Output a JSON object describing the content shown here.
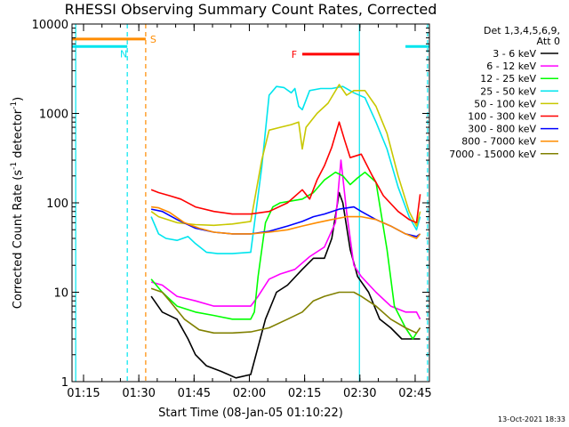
{
  "chart_data": {
    "type": "line",
    "title": "RHESSI Observing Summary Count Rates, Corrected",
    "xlabel": "Start Time (08-Jan-05 01:10:22)",
    "ylabel_main": "Corrected Count Rate (s",
    "ylabel_sup1": "-1",
    "ylabel_mid": " detector",
    "ylabel_sup2": "-1",
    "ylabel_end": ")",
    "yscale": "log",
    "ylim": [
      1,
      10000
    ],
    "xlim_minutes": [
      1.5,
      98.5
    ],
    "yticks": [
      {
        "value": 1,
        "label": "1"
      },
      {
        "value": 10,
        "label": "10"
      },
      {
        "value": 100,
        "label": "100"
      },
      {
        "value": 1000,
        "label": "1000"
      },
      {
        "value": 10000,
        "label": "10000"
      }
    ],
    "xticks": [
      {
        "t": 4.63,
        "label": "01:15"
      },
      {
        "t": 19.63,
        "label": "01:30"
      },
      {
        "t": 34.63,
        "label": "01:45"
      },
      {
        "t": 49.63,
        "label": "02:00"
      },
      {
        "t": 64.63,
        "label": "02:15"
      },
      {
        "t": 79.63,
        "label": "02:30"
      },
      {
        "t": 94.63,
        "label": "02:45"
      }
    ],
    "legend_title_1": "Det 1,3,4,5,6,9,",
    "legend_title_2": "Att 0",
    "legend_position": "right",
    "timestamp": "13-Oct-2021 18:33",
    "flags": [
      {
        "label": "S",
        "color": "#ff8c00",
        "t_start": 1.5,
        "t_end": 21.5,
        "y": 6800
      },
      {
        "label": "N",
        "color": "#00e5ee",
        "t_start": 1.5,
        "t_end": 16.5,
        "y": 5600
      },
      {
        "label": "",
        "color": "#00e5ee",
        "t_start": 92,
        "t_end": 98.5,
        "y": 5600
      },
      {
        "label": "F",
        "color": "#ff0000",
        "t_start": 64,
        "t_end": 79.5,
        "y": 4600
      }
    ],
    "vlines": [
      {
        "t": 2.5,
        "color": "#00e5ee",
        "style": "solid"
      },
      {
        "t": 16.5,
        "color": "#00e5ee",
        "style": "dashed"
      },
      {
        "t": 21.5,
        "color": "#ff8c00",
        "style": "dashed"
      },
      {
        "t": 79.5,
        "color": "#00e5ee",
        "style": "solid"
      },
      {
        "t": 98,
        "color": "#00e5ee",
        "style": "dashed"
      }
    ],
    "series": [
      {
        "name": "3 - 6 keV",
        "color": "#000000",
        "points": [
          [
            23,
            9
          ],
          [
            26,
            6
          ],
          [
            30,
            5
          ],
          [
            33,
            3
          ],
          [
            35,
            2
          ],
          [
            38,
            1.5
          ],
          [
            42,
            1.3
          ],
          [
            46,
            1.1
          ],
          [
            50,
            1.2
          ],
          [
            54,
            5
          ],
          [
            57,
            10
          ],
          [
            60,
            12
          ],
          [
            64,
            18
          ],
          [
            67,
            24
          ],
          [
            70,
            24
          ],
          [
            72,
            40
          ],
          [
            74,
            130
          ],
          [
            75,
            100
          ],
          [
            77,
            30
          ],
          [
            79,
            15
          ],
          [
            82,
            10
          ],
          [
            85,
            5
          ],
          [
            88,
            4
          ],
          [
            91,
            3
          ],
          [
            94,
            3
          ],
          [
            96,
            3
          ]
        ]
      },
      {
        "name": "6 - 12 keV",
        "color": "#ff00ff",
        "points": [
          [
            23,
            13
          ],
          [
            26,
            12
          ],
          [
            30,
            9
          ],
          [
            35,
            8
          ],
          [
            40,
            7
          ],
          [
            45,
            7
          ],
          [
            50,
            7
          ],
          [
            52,
            9
          ],
          [
            55,
            14
          ],
          [
            58,
            16
          ],
          [
            62,
            18
          ],
          [
            66,
            25
          ],
          [
            70,
            32
          ],
          [
            73,
            60
          ],
          [
            74.5,
            300
          ],
          [
            76,
            80
          ],
          [
            78,
            20
          ],
          [
            80,
            15
          ],
          [
            84,
            10
          ],
          [
            88,
            7
          ],
          [
            92,
            6
          ],
          [
            95,
            6
          ],
          [
            96,
            5
          ]
        ]
      },
      {
        "name": "12 - 25 keV",
        "color": "#00ff00",
        "points": [
          [
            23,
            14
          ],
          [
            26,
            10
          ],
          [
            30,
            7
          ],
          [
            35,
            6
          ],
          [
            40,
            5.5
          ],
          [
            45,
            5
          ],
          [
            50,
            5
          ],
          [
            51,
            6
          ],
          [
            52,
            15
          ],
          [
            54,
            60
          ],
          [
            56,
            90
          ],
          [
            58,
            100
          ],
          [
            61,
            105
          ],
          [
            64,
            110
          ],
          [
            67,
            130
          ],
          [
            70,
            180
          ],
          [
            73,
            220
          ],
          [
            75,
            200
          ],
          [
            77,
            160
          ],
          [
            79,
            190
          ],
          [
            81,
            220
          ],
          [
            84,
            170
          ],
          [
            87,
            30
          ],
          [
            89,
            7
          ],
          [
            92,
            4
          ],
          [
            94,
            3
          ],
          [
            95,
            3.5
          ]
        ]
      },
      {
        "name": "25 - 50 keV",
        "color": "#00e5ee",
        "points": [
          [
            23,
            70
          ],
          [
            25,
            45
          ],
          [
            27,
            40
          ],
          [
            30,
            38
          ],
          [
            33,
            42
          ],
          [
            35,
            35
          ],
          [
            38,
            28
          ],
          [
            41,
            27
          ],
          [
            45,
            27
          ],
          [
            50,
            28
          ],
          [
            53,
            250
          ],
          [
            55,
            1600
          ],
          [
            57,
            2000
          ],
          [
            59,
            1950
          ],
          [
            61,
            1700
          ],
          [
            62,
            1900
          ],
          [
            63,
            1200
          ],
          [
            64,
            1100
          ],
          [
            66,
            1800
          ],
          [
            69,
            1900
          ],
          [
            72,
            1900
          ],
          [
            75,
            2000
          ],
          [
            78,
            1700
          ],
          [
            81,
            1500
          ],
          [
            84,
            800
          ],
          [
            87,
            400
          ],
          [
            90,
            150
          ],
          [
            93,
            70
          ],
          [
            95,
            50
          ],
          [
            96,
            70
          ]
        ]
      },
      {
        "name": "50 - 100 keV",
        "color": "#c8c800",
        "points": [
          [
            23,
            80
          ],
          [
            25,
            70
          ],
          [
            30,
            60
          ],
          [
            35,
            57
          ],
          [
            40,
            56
          ],
          [
            45,
            58
          ],
          [
            50,
            62
          ],
          [
            53,
            300
          ],
          [
            55,
            650
          ],
          [
            58,
            700
          ],
          [
            61,
            750
          ],
          [
            63,
            800
          ],
          [
            64,
            400
          ],
          [
            65,
            700
          ],
          [
            68,
            1000
          ],
          [
            71,
            1300
          ],
          [
            74,
            2100
          ],
          [
            76,
            1600
          ],
          [
            78,
            1800
          ],
          [
            81,
            1800
          ],
          [
            84,
            1200
          ],
          [
            87,
            600
          ],
          [
            90,
            200
          ],
          [
            93,
            80
          ],
          [
            95,
            55
          ],
          [
            96,
            80
          ]
        ]
      },
      {
        "name": "100 - 300 keV",
        "color": "#ff0000",
        "points": [
          [
            23,
            140
          ],
          [
            25,
            130
          ],
          [
            28,
            120
          ],
          [
            31,
            110
          ],
          [
            35,
            90
          ],
          [
            40,
            80
          ],
          [
            45,
            75
          ],
          [
            50,
            75
          ],
          [
            55,
            80
          ],
          [
            60,
            100
          ],
          [
            64,
            140
          ],
          [
            66,
            110
          ],
          [
            68,
            180
          ],
          [
            70,
            260
          ],
          [
            72,
            420
          ],
          [
            74,
            800
          ],
          [
            75.5,
            500
          ],
          [
            77,
            320
          ],
          [
            80,
            350
          ],
          [
            83,
            200
          ],
          [
            86,
            120
          ],
          [
            90,
            80
          ],
          [
            93,
            65
          ],
          [
            95,
            60
          ],
          [
            96,
            125
          ]
        ]
      },
      {
        "name": "300 - 800 keV",
        "color": "#0000ff",
        "points": [
          [
            23,
            85
          ],
          [
            26,
            80
          ],
          [
            30,
            65
          ],
          [
            35,
            52
          ],
          [
            40,
            47
          ],
          [
            45,
            45
          ],
          [
            50,
            45
          ],
          [
            55,
            48
          ],
          [
            60,
            55
          ],
          [
            64,
            62
          ],
          [
            67,
            70
          ],
          [
            70,
            75
          ],
          [
            74,
            85
          ],
          [
            78,
            90
          ],
          [
            80,
            80
          ],
          [
            84,
            65
          ],
          [
            88,
            55
          ],
          [
            92,
            45
          ],
          [
            95,
            42
          ],
          [
            96,
            45
          ]
        ]
      },
      {
        "name": "800 - 7000 keV",
        "color": "#ff8c00",
        "points": [
          [
            23,
            90
          ],
          [
            25,
            88
          ],
          [
            28,
            78
          ],
          [
            32,
            60
          ],
          [
            36,
            52
          ],
          [
            40,
            47
          ],
          [
            45,
            45
          ],
          [
            50,
            45
          ],
          [
            55,
            47
          ],
          [
            60,
            50
          ],
          [
            64,
            55
          ],
          [
            68,
            60
          ],
          [
            72,
            65
          ],
          [
            76,
            70
          ],
          [
            80,
            70
          ],
          [
            84,
            65
          ],
          [
            88,
            55
          ],
          [
            92,
            45
          ],
          [
            95,
            40
          ],
          [
            96,
            45
          ]
        ]
      },
      {
        "name": "7000 - 15000 keV",
        "color": "#808000",
        "points": [
          [
            23,
            11
          ],
          [
            26,
            10
          ],
          [
            28,
            8
          ],
          [
            32,
            5
          ],
          [
            36,
            3.8
          ],
          [
            40,
            3.5
          ],
          [
            45,
            3.5
          ],
          [
            50,
            3.6
          ],
          [
            55,
            4
          ],
          [
            60,
            5
          ],
          [
            64,
            6
          ],
          [
            67,
            8
          ],
          [
            70,
            9
          ],
          [
            74,
            10
          ],
          [
            78,
            10
          ],
          [
            80,
            9
          ],
          [
            84,
            7
          ],
          [
            88,
            5
          ],
          [
            92,
            4
          ],
          [
            95,
            3.5
          ],
          [
            96,
            4
          ]
        ]
      }
    ]
  }
}
